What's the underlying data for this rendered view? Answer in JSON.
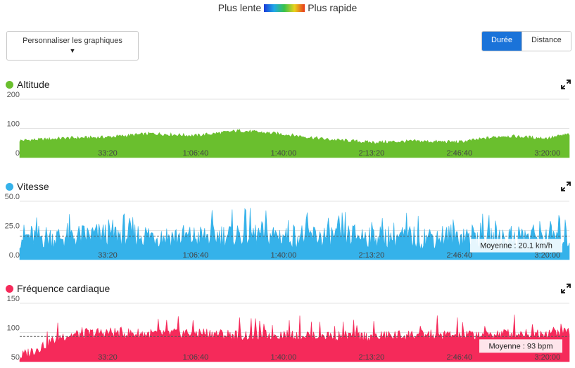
{
  "legend": {
    "slow": "Plus lente",
    "fast": "Plus rapide"
  },
  "controls": {
    "customize_label": "Personnaliser les graphiques",
    "toggle": {
      "duration": "Durée",
      "distance": "Distance",
      "active": "duration"
    }
  },
  "colors": {
    "altitude": "#6abf2e",
    "speed": "#35b2ea",
    "heart": "#f52a5a",
    "toggle_active": "#1a73d9"
  },
  "chart_data": [
    {
      "type": "area",
      "title": "Altitude",
      "color": "#6abf2e",
      "y_ticks": [
        "200",
        "100",
        "0"
      ],
      "ylim": [
        0,
        200
      ],
      "x_ticks": [
        "33:20",
        "1:06:40",
        "1:40:00",
        "2:13:20",
        "2:46:40",
        "3:20:00"
      ],
      "x_seconds": [
        0,
        1000,
        2000,
        3000,
        4000,
        5000,
        6000,
        7000,
        8000,
        9000,
        10000,
        11000,
        12000,
        12500
      ],
      "series": [
        {
          "values": [
            58,
            66,
            70,
            82,
            75,
            92,
            80,
            62,
            52,
            56,
            53,
            74,
            66,
            80
          ]
        }
      ]
    },
    {
      "type": "area",
      "title": "Vitesse",
      "color": "#35b2ea",
      "y_ticks": [
        "50.0",
        "25.0",
        "0.0"
      ],
      "ylim": [
        0,
        50
      ],
      "x_ticks": [
        "33:20",
        "1:06:40",
        "1:40:00",
        "2:13:20",
        "2:46:40",
        "3:20:00"
      ],
      "x_seconds": [
        0,
        1000,
        2000,
        3000,
        4000,
        5000,
        6000,
        7000,
        8000,
        9000,
        10000,
        11000,
        12000,
        12500
      ],
      "series": [
        {
          "values": [
            20,
            19,
            22,
            21,
            19,
            22,
            21,
            20,
            21,
            19,
            21,
            20,
            21,
            19
          ]
        }
      ],
      "average": {
        "value": 20.1,
        "label": "Moyenne : 20.1 km/h"
      }
    },
    {
      "type": "area",
      "title": "Fréquence cardiaque",
      "color": "#f52a5a",
      "y_ticks": [
        "150",
        "100",
        "50"
      ],
      "ylim": [
        50,
        150
      ],
      "x_ticks": [
        "33:20",
        "1:06:40",
        "1:40:00",
        "2:13:20",
        "2:46:40",
        "3:20:00"
      ],
      "x_seconds": [
        0,
        1000,
        2000,
        3000,
        4000,
        5000,
        6000,
        7000,
        8000,
        9000,
        10000,
        11000,
        12000,
        12500
      ],
      "series": [
        {
          "values": [
            58,
            95,
            100,
            97,
            100,
            95,
            97,
            95,
            93,
            96,
            95,
            98,
            100,
            103
          ]
        }
      ],
      "average": {
        "value": 93,
        "label": "Moyenne : 93 bpm"
      }
    }
  ]
}
